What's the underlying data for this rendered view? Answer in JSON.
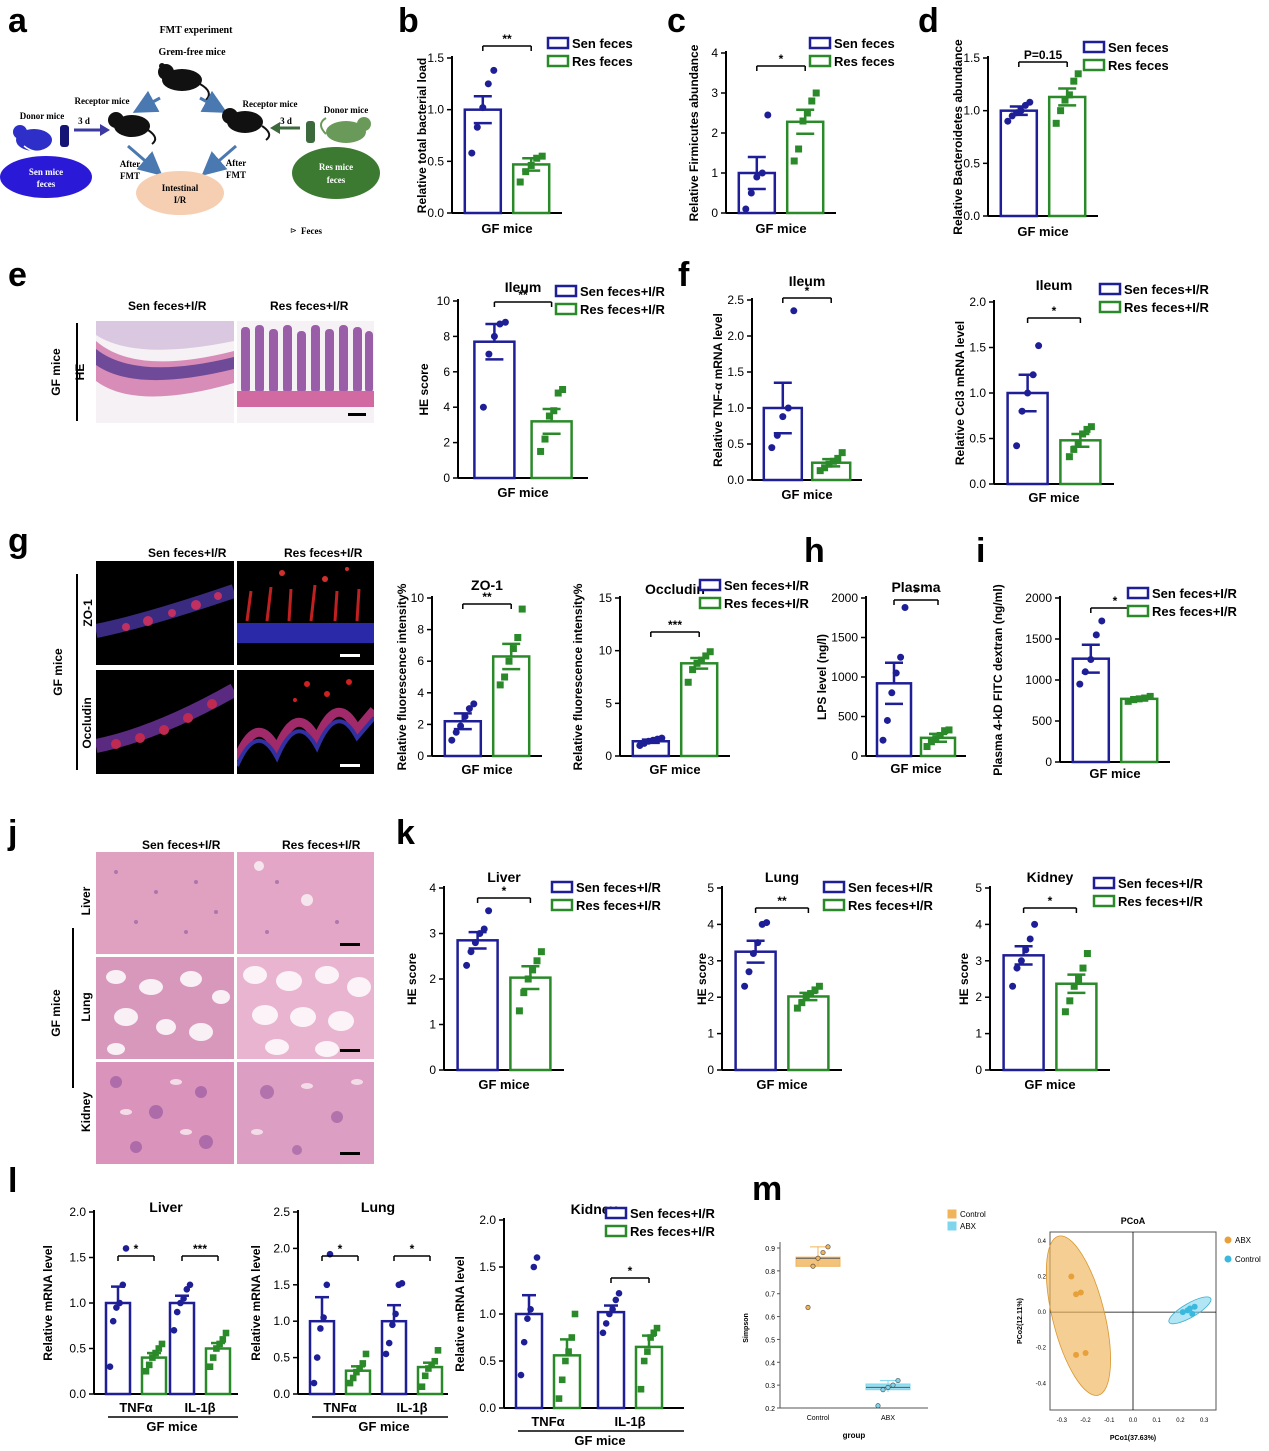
{
  "panel_letters": {
    "a": "a",
    "b": "b",
    "c": "c",
    "d": "d",
    "e": "e",
    "f": "f",
    "g": "g",
    "h": "h",
    "i": "i",
    "j": "j",
    "k": "k",
    "l": "l",
    "m": "m"
  },
  "colors": {
    "sen": "#1e1e96",
    "res": "#2a8a2a",
    "control": "#f0b45a",
    "abx": "#7fd6ec",
    "he_pink": "#e3a2c4",
    "he_purple": "#7b4f9a"
  },
  "schematic": {
    "title": "FMT experiment",
    "germ_free": "Grem-free mice",
    "receptor_left": "Receptor mice",
    "receptor_right": "Receptor mice",
    "donor_left": "Donor mice",
    "donor_right": "Donor mice",
    "days_left": "3 d",
    "days_right": "3 d",
    "sen_feces_1": "Sen mice",
    "sen_feces_2": "feces",
    "res_feces_1": "Res mice",
    "res_feces_2": "feces",
    "after_left_1": "After",
    "after_left_2": "FMT",
    "after_right_1": "After",
    "after_right_2": "FMT",
    "intestinal_1": "Intestinal",
    "intestinal_2": "I/R",
    "feces_legend": "Feces"
  },
  "images": {
    "e_col1": "Sen feces+I/R",
    "e_col2": "Res feces+I/R",
    "e_group": "GF mice",
    "e_row": "HE",
    "g_col1": "Sen feces+I/R",
    "g_col2": "Res feces+I/R",
    "g_group": "GF mice",
    "g_row1": "ZO-1",
    "g_row2": "Occludin",
    "j_col1": "Sen feces+I/R",
    "j_col2": "Res feces+I/R",
    "j_group": "GF mice",
    "j_row1": "Liver",
    "j_row2": "Lung",
    "j_row3": "Kidney"
  },
  "chart_data": [
    {
      "id": "b",
      "type": "bar",
      "title": "",
      "xlabel": "GF mice",
      "ylabel": "Relative total bacterial load",
      "ylim": [
        0,
        1.5
      ],
      "yticks": [
        "0.0",
        "0.5",
        "1.0",
        "1.5"
      ],
      "series": [
        {
          "name": "Sen feces",
          "mean": 1.0,
          "sem": 0.13,
          "points": [
            0.58,
            0.83,
            1.02,
            1.25,
            1.38
          ]
        },
        {
          "name": "Res feces",
          "mean": 0.47,
          "sem": 0.06,
          "points": [
            0.3,
            0.4,
            0.46,
            0.53,
            0.55
          ]
        }
      ],
      "sig": "**"
    },
    {
      "id": "c",
      "type": "bar",
      "title": "",
      "xlabel": "GF mice",
      "ylabel": "Relative Firmicutes abundance",
      "ylim": [
        0,
        4
      ],
      "yticks": [
        "0",
        "1",
        "2",
        "3",
        "4"
      ],
      "series": [
        {
          "name": "Sen feces",
          "mean": 1.0,
          "sem": 0.4,
          "points": [
            0.1,
            0.5,
            0.9,
            1.0,
            2.45
          ]
        },
        {
          "name": "Res feces",
          "mean": 2.28,
          "sem": 0.3,
          "points": [
            1.3,
            1.6,
            2.3,
            2.5,
            2.8,
            3.0
          ]
        }
      ],
      "sig": "*"
    },
    {
      "id": "d",
      "type": "bar",
      "title": "",
      "xlabel": "GF mice",
      "ylabel": "Relative Bacteroidetes abundance",
      "ylim": [
        0,
        1.5
      ],
      "yticks": [
        "0.0",
        "0.5",
        "1.0",
        "1.5"
      ],
      "series": [
        {
          "name": "Sen feces",
          "mean": 1.0,
          "sem": 0.04,
          "points": [
            0.9,
            0.95,
            0.98,
            1.0,
            1.05,
            1.08
          ]
        },
        {
          "name": "Res feces",
          "mean": 1.13,
          "sem": 0.08,
          "points": [
            0.88,
            1.0,
            1.1,
            1.15,
            1.28,
            1.35
          ]
        }
      ],
      "sig": "P=0.15"
    },
    {
      "id": "e",
      "type": "bar",
      "title": "Ileum",
      "xlabel": "GF mice",
      "ylabel": "HE score",
      "ylim": [
        0,
        10
      ],
      "yticks": [
        "0",
        "2",
        "4",
        "6",
        "8",
        "10"
      ],
      "series": [
        {
          "name": "Sen feces+I/R",
          "mean": 7.7,
          "sem": 1.0,
          "points": [
            4.0,
            7.0,
            8.0,
            8.7,
            8.8
          ]
        },
        {
          "name": "Res feces+I/R",
          "mean": 3.2,
          "sem": 0.7,
          "points": [
            1.5,
            2.2,
            3.5,
            3.8,
            4.8,
            5.0
          ]
        }
      ],
      "sig": "**"
    },
    {
      "id": "f1",
      "type": "bar",
      "title": "Ileum",
      "xlabel": "GF mice",
      "ylabel": "Relative TNF-α mRNA level",
      "ylim": [
        0,
        2.5
      ],
      "yticks": [
        "0.0",
        "0.5",
        "1.0",
        "1.5",
        "2.0",
        "2.5"
      ],
      "series": [
        {
          "name": "Sen feces+I/R",
          "mean": 1.0,
          "sem": 0.35,
          "points": [
            0.45,
            0.62,
            0.88,
            1.0,
            2.35
          ]
        },
        {
          "name": "Res feces+I/R",
          "mean": 0.24,
          "sem": 0.05,
          "points": [
            0.13,
            0.17,
            0.22,
            0.26,
            0.3,
            0.38
          ]
        }
      ],
      "sig": "*"
    },
    {
      "id": "f2",
      "type": "bar",
      "title": "Ileum",
      "xlabel": "GF mice",
      "ylabel": "Relative Ccl3 mRNA level",
      "ylim": [
        0,
        2.0
      ],
      "yticks": [
        "0.0",
        "0.5",
        "1.0",
        "1.5",
        "2.0"
      ],
      "series": [
        {
          "name": "Sen feces+I/R",
          "mean": 1.0,
          "sem": 0.2,
          "points": [
            0.42,
            0.8,
            1.0,
            1.2,
            1.52
          ]
        },
        {
          "name": "Res feces+I/R",
          "mean": 0.48,
          "sem": 0.07,
          "points": [
            0.3,
            0.38,
            0.45,
            0.55,
            0.6,
            0.63
          ]
        }
      ],
      "sig": "*"
    },
    {
      "id": "g1",
      "type": "bar",
      "title": "ZO-1",
      "xlabel": "GF mice",
      "ylabel": "Relative fluorescence intensity%",
      "ylim": [
        0,
        10
      ],
      "yticks": [
        "0",
        "2",
        "4",
        "6",
        "8",
        "10"
      ],
      "series": [
        {
          "name": "Sen feces+I/R",
          "mean": 2.2,
          "sem": 0.5,
          "points": [
            1.0,
            1.5,
            1.9,
            2.5,
            3.0,
            3.3
          ]
        },
        {
          "name": "Res feces+I/R",
          "mean": 6.3,
          "sem": 0.8,
          "points": [
            4.5,
            5.0,
            6.0,
            6.8,
            7.5,
            9.3
          ]
        }
      ],
      "sig": "**"
    },
    {
      "id": "g2",
      "type": "bar",
      "title": "Occludin",
      "xlabel": "GF mice",
      "ylabel": "Relative fluorescence intensity%",
      "ylim": [
        0,
        15
      ],
      "yticks": [
        "0",
        "5",
        "10",
        "15"
      ],
      "series": [
        {
          "name": "Sen feces+I/R",
          "mean": 1.4,
          "sem": 0.15,
          "points": [
            1.0,
            1.2,
            1.4,
            1.5,
            1.6,
            1.7
          ]
        },
        {
          "name": "Res feces+I/R",
          "mean": 8.8,
          "sem": 0.5,
          "points": [
            7.0,
            8.2,
            8.8,
            9.1,
            9.5,
            9.9
          ]
        }
      ],
      "sig": "***"
    },
    {
      "id": "h",
      "type": "bar",
      "title": "Plasma",
      "xlabel": "GF mice",
      "ylabel": "LPS level (ng/l)",
      "ylim": [
        0,
        2000
      ],
      "yticks": [
        "0",
        "500",
        "1000",
        "1500",
        "2000"
      ],
      "series": [
        {
          "name": "Sen feces+I/R",
          "mean": 920,
          "sem": 260,
          "points": [
            200,
            450,
            800,
            1050,
            1250,
            1880
          ]
        },
        {
          "name": "Res feces+I/R",
          "mean": 230,
          "sem": 50,
          "points": [
            120,
            180,
            220,
            260,
            320,
            330
          ]
        }
      ],
      "sig": "*"
    },
    {
      "id": "i",
      "type": "bar",
      "title": "",
      "xlabel": "GF mice",
      "ylabel": "Plasma 4-kD FITC dextran (ng/ml)",
      "ylim": [
        0,
        2000
      ],
      "yticks": [
        "0",
        "500",
        "1000",
        "1500",
        "2000"
      ],
      "series": [
        {
          "name": "Sen feces+I/R",
          "mean": 1260,
          "sem": 170,
          "points": [
            950,
            1100,
            1250,
            1550,
            1720
          ]
        },
        {
          "name": "Res feces+I/R",
          "mean": 770,
          "sem": 20,
          "points": [
            740,
            760,
            770,
            780,
            800
          ]
        }
      ],
      "sig": "*"
    },
    {
      "id": "k1",
      "type": "bar",
      "title": "Liver",
      "xlabel": "GF mice",
      "ylabel": "HE score",
      "ylim": [
        0,
        4
      ],
      "yticks": [
        "0",
        "1",
        "2",
        "3",
        "4"
      ],
      "series": [
        {
          "name": "Sen feces+I/R",
          "mean": 2.85,
          "sem": 0.18,
          "points": [
            2.3,
            2.6,
            2.8,
            3.0,
            3.1,
            3.5
          ]
        },
        {
          "name": "Res feces+I/R",
          "mean": 2.03,
          "sem": 0.25,
          "points": [
            1.3,
            1.7,
            2.0,
            2.2,
            2.4,
            2.6
          ]
        }
      ],
      "sig": "*"
    },
    {
      "id": "k2",
      "type": "bar",
      "title": "Lung",
      "xlabel": "GF mice",
      "ylabel": "HE score",
      "ylim": [
        0,
        5
      ],
      "yticks": [
        "0",
        "1",
        "2",
        "3",
        "4",
        "5"
      ],
      "series": [
        {
          "name": "Sen feces+I/R",
          "mean": 3.25,
          "sem": 0.3,
          "points": [
            2.3,
            2.7,
            3.2,
            3.5,
            4.0,
            4.05
          ]
        },
        {
          "name": "Res feces+I/R",
          "mean": 2.02,
          "sem": 0.1,
          "points": [
            1.7,
            1.85,
            2.0,
            2.1,
            2.2,
            2.3
          ]
        }
      ],
      "sig": "**"
    },
    {
      "id": "k3",
      "type": "bar",
      "title": "Kidney",
      "xlabel": "GF mice",
      "ylabel": "HE score",
      "ylim": [
        0,
        5
      ],
      "yticks": [
        "0",
        "1",
        "2",
        "3",
        "4",
        "5"
      ],
      "series": [
        {
          "name": "Sen feces+I/R",
          "mean": 3.15,
          "sem": 0.25,
          "points": [
            2.3,
            2.8,
            3.0,
            3.3,
            3.6,
            4.0
          ]
        },
        {
          "name": "Res feces+I/R",
          "mean": 2.37,
          "sem": 0.25,
          "points": [
            1.6,
            1.9,
            2.3,
            2.5,
            2.8,
            3.2
          ]
        }
      ],
      "sig": "*"
    },
    {
      "id": "l1",
      "type": "grouped-bar",
      "title": "Liver",
      "xlabel": "GF mice",
      "ylabel": "Relative mRNA level",
      "ylim": [
        0,
        2.0
      ],
      "yticks": [
        "0.0",
        "0.5",
        "1.0",
        "1.5",
        "2.0"
      ],
      "categories": [
        "TNFα",
        "IL-1β"
      ],
      "series": [
        {
          "name": "Sen feces+I/R",
          "means": [
            1.0,
            1.0
          ],
          "sems": [
            0.18,
            0.08
          ],
          "points": [
            [
              0.3,
              0.8,
              0.95,
              1.0,
              1.2,
              1.6
            ],
            [
              0.7,
              0.9,
              1.0,
              1.05,
              1.15,
              1.2
            ]
          ]
        },
        {
          "name": "Res feces+I/R",
          "means": [
            0.4,
            0.5
          ],
          "sems": [
            0.05,
            0.06
          ],
          "points": [
            [
              0.25,
              0.32,
              0.4,
              0.45,
              0.5,
              0.55
            ],
            [
              0.3,
              0.4,
              0.5,
              0.55,
              0.6,
              0.67
            ]
          ]
        }
      ],
      "sig": [
        "*",
        "***"
      ]
    },
    {
      "id": "l2",
      "type": "grouped-bar",
      "title": "Lung",
      "xlabel": "GF mice",
      "ylabel": "Relative mRNA level",
      "ylim": [
        0,
        2.5
      ],
      "yticks": [
        "0.0",
        "0.5",
        "1.0",
        "1.5",
        "2.0",
        "2.5"
      ],
      "categories": [
        "TNFα",
        "IL-1β"
      ],
      "series": [
        {
          "name": "Sen feces+I/R",
          "means": [
            1.0,
            1.0
          ],
          "sems": [
            0.33,
            0.22
          ],
          "points": [
            [
              0.15,
              0.5,
              0.9,
              1.05,
              1.5,
              1.92
            ],
            [
              0.55,
              0.7,
              0.95,
              1.1,
              1.5,
              1.52
            ]
          ]
        },
        {
          "name": "Res feces+I/R",
          "means": [
            0.32,
            0.37
          ],
          "sems": [
            0.06,
            0.06
          ],
          "points": [
            [
              0.15,
              0.22,
              0.3,
              0.35,
              0.42,
              0.55
            ],
            [
              0.1,
              0.25,
              0.35,
              0.4,
              0.45,
              0.6
            ]
          ]
        }
      ],
      "sig": [
        "*",
        "*"
      ]
    },
    {
      "id": "l3",
      "type": "grouped-bar",
      "title": "Kidney",
      "xlabel": "GF mice",
      "ylabel": "Relative mRNA level",
      "ylim": [
        0,
        2.0
      ],
      "yticks": [
        "0.0",
        "0.5",
        "1.0",
        "1.5",
        "2.0"
      ],
      "categories": [
        "TNFα",
        "IL-1β"
      ],
      "series": [
        {
          "name": "Sen feces+I/R",
          "means": [
            1.0,
            1.02
          ],
          "sems": [
            0.2,
            0.07
          ],
          "points": [
            [
              0.35,
              0.7,
              0.95,
              1.05,
              1.5,
              1.6
            ],
            [
              0.8,
              0.9,
              1.0,
              1.05,
              1.15,
              1.22
            ]
          ]
        },
        {
          "name": "Res feces+I/R",
          "means": [
            0.56,
            0.65
          ],
          "sems": [
            0.17,
            0.12
          ],
          "points": [
            [
              0.1,
              0.3,
              0.5,
              0.6,
              0.75,
              1.0
            ],
            [
              0.2,
              0.5,
              0.6,
              0.75,
              0.8,
              0.85
            ]
          ]
        }
      ],
      "sig": [
        "",
        "*"
      ]
    }
  ],
  "m_box": {
    "type": "box",
    "xlabel": "group",
    "ylabel": "Simpson",
    "ylim": [
      0.2,
      0.9
    ],
    "yticks": [
      "0.2",
      "0.3",
      "0.4",
      "0.5",
      "0.6",
      "0.7",
      "0.8",
      "0.9"
    ],
    "categories": [
      "Control",
      "ABX"
    ],
    "groups": [
      {
        "name": "Control",
        "q1": 0.82,
        "median": 0.855,
        "q3": 0.86,
        "whisk_lo": 0.82,
        "whisk_hi": 0.905,
        "points": [
          0.64,
          0.82,
          0.855,
          0.88,
          0.905
        ]
      },
      {
        "name": "ABX",
        "q1": 0.28,
        "median": 0.29,
        "q3": 0.305,
        "whisk_lo": 0.27,
        "whisk_hi": 0.32,
        "points": [
          0.21,
          0.28,
          0.29,
          0.3,
          0.32
        ]
      }
    ],
    "legend": [
      "Control",
      "ABX"
    ]
  },
  "m_pcoa": {
    "type": "scatter",
    "title": "PCoA",
    "xlabel": "PCo1(37.63%)",
    "ylabel": "PCo2(12.11%)",
    "xlim": [
      -0.35,
      0.35
    ],
    "ylim": [
      -0.55,
      0.45
    ],
    "xticks": [
      "-0.3",
      "-0.2",
      "-0.1",
      "0.0",
      "0.1",
      "0.2",
      "0.3"
    ],
    "yticks": [
      "0.4",
      "0.2",
      "0.0",
      "-0.2",
      "-0.4"
    ],
    "legend": [
      "ABX",
      "Control"
    ],
    "series": [
      {
        "name": "ABX",
        "x": [
          -0.26,
          -0.24,
          -0.22,
          -0.2,
          -0.24
        ],
        "y": [
          0.2,
          0.1,
          0.11,
          -0.23,
          -0.24
        ]
      },
      {
        "name": "Control",
        "x": [
          0.21,
          0.23,
          0.24,
          0.26,
          0.25
        ],
        "y": [
          0.0,
          0.01,
          0.02,
          0.03,
          -0.01
        ]
      }
    ]
  }
}
